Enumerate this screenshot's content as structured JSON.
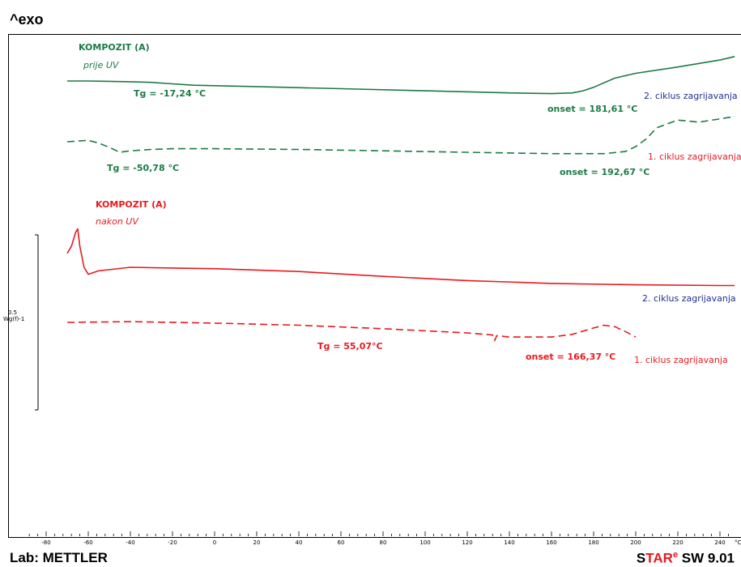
{
  "header": {
    "exo_label": "^exo"
  },
  "footer": {
    "lab": "Lab: METTLER",
    "software_prefix": "S",
    "software_tar": "TAR",
    "software_sup": "e",
    "software_suffix": " SW 9.01"
  },
  "scale_bar": {
    "value": "0.5",
    "unit": "Wg^-1",
    "unit_display": "Wg(f)-1"
  },
  "colors": {
    "green": "#1c7a45",
    "red": "#e8191f",
    "blue": "#1f2f8f"
  },
  "chart_data": {
    "type": "line",
    "xlabel": "",
    "ylabel": "",
    "x_unit": "°C",
    "xlim": [
      -88,
      247
    ],
    "x_ticks": [
      -80,
      -60,
      -40,
      -20,
      0,
      20,
      40,
      60,
      80,
      100,
      120,
      140,
      160,
      180,
      200,
      220,
      240
    ],
    "groups": [
      {
        "title": "KOMPOZIT (A)",
        "subtitle": "prije UV",
        "color": "#1c7a45"
      },
      {
        "title": "KOMPOZIT (A)",
        "subtitle": "nakon UV",
        "color": "#e8191f"
      }
    ],
    "series": [
      {
        "name": "2. ciklus zagrijavanja",
        "group": 0,
        "style": "solid",
        "color": "#1c7a45",
        "x": [
          -70,
          -60,
          -40,
          -30,
          -20,
          -10,
          20,
          60,
          100,
          140,
          160,
          170,
          175,
          180,
          190,
          200,
          220,
          240,
          247
        ],
        "y": [
          0.0,
          0.0,
          -0.002,
          -0.004,
          -0.008,
          -0.012,
          -0.016,
          -0.022,
          -0.028,
          -0.034,
          -0.036,
          -0.034,
          -0.028,
          -0.018,
          0.008,
          0.022,
          0.04,
          0.06,
          0.07
        ]
      },
      {
        "name": "1. ciklus zagrijavanja",
        "group": 0,
        "style": "dashed",
        "color": "#1c7a45",
        "x": [
          -70,
          -60,
          -55,
          -50,
          -45,
          -40,
          -30,
          -20,
          0,
          40,
          80,
          120,
          160,
          185,
          195,
          200,
          205,
          210,
          220,
          230,
          247
        ],
        "y": [
          0.0,
          0.004,
          -0.004,
          -0.016,
          -0.03,
          -0.026,
          -0.022,
          -0.02,
          -0.02,
          -0.022,
          -0.026,
          -0.03,
          -0.034,
          -0.034,
          -0.028,
          -0.014,
          0.008,
          0.04,
          0.062,
          0.056,
          0.072
        ]
      },
      {
        "name": "2. ciklus zagrijavanja",
        "group": 1,
        "style": "solid",
        "color": "#e8191f",
        "x": [
          -70,
          -68,
          -66,
          -65,
          -64,
          -62,
          -60,
          -55,
          -40,
          -20,
          0,
          40,
          80,
          120,
          160,
          200,
          240,
          247
        ],
        "y": [
          0.04,
          0.06,
          0.1,
          0.11,
          0.06,
          0.0,
          -0.02,
          -0.01,
          0.0,
          -0.002,
          -0.004,
          -0.012,
          -0.026,
          -0.038,
          -0.046,
          -0.05,
          -0.052,
          -0.052
        ]
      },
      {
        "name": "1. ciklus zagrijavanja",
        "group": 1,
        "style": "dashed",
        "color": "#e8191f",
        "x": [
          -70,
          -40,
          0,
          40,
          80,
          120,
          132,
          133,
          134,
          140,
          160,
          170,
          180,
          185,
          190,
          195,
          200
        ],
        "y": [
          -0.22,
          -0.218,
          -0.222,
          -0.228,
          -0.238,
          -0.25,
          -0.256,
          -0.272,
          -0.258,
          -0.262,
          -0.262,
          -0.254,
          -0.236,
          -0.228,
          -0.232,
          -0.246,
          -0.262
        ]
      }
    ],
    "annotations": [
      {
        "text": "Tg = -17,24 °C",
        "group": 0,
        "cycle": 2
      },
      {
        "text": "onset = 181,61 °C",
        "group": 0,
        "cycle": 2
      },
      {
        "text": "Tg = -50,78 °C",
        "group": 0,
        "cycle": 1
      },
      {
        "text": "onset = 192,67 °C",
        "group": 0,
        "cycle": 1
      },
      {
        "text": "Tg = 55,07°C",
        "group": 1,
        "cycle": 1
      },
      {
        "text": "onset = 166,37 °C",
        "group": 1,
        "cycle": 1
      }
    ],
    "grid": false,
    "legend": "inline curve labels at right"
  }
}
